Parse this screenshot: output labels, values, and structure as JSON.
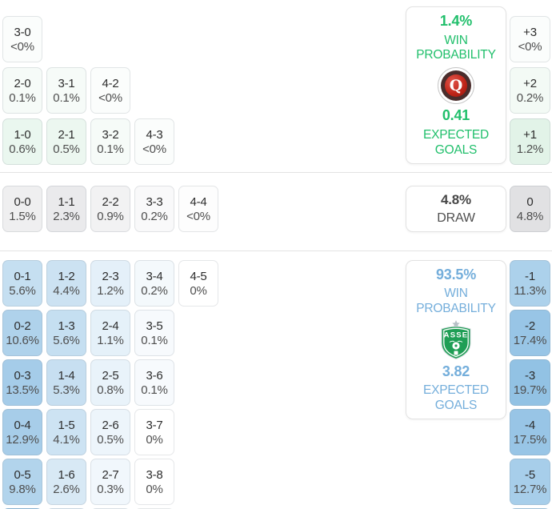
{
  "colors": {
    "green": "#20bf6b",
    "blue": "#74aedb",
    "divider": "#e3e3e3",
    "heat_green": "30,165,80",
    "heat_blue": "50,140,205",
    "heat_gray": "120,120,128",
    "team1_logo_red": "#c1271b",
    "team2_logo_green": "#1f9e55"
  },
  "top": {
    "rows": [
      [
        {
          "score": "3-0",
          "pct": "<0%"
        }
      ],
      [
        {
          "score": "2-0",
          "pct": "0.1%"
        },
        {
          "score": "3-1",
          "pct": "0.1%"
        },
        {
          "score": "4-2",
          "pct": "<0%"
        }
      ],
      [
        {
          "score": "1-0",
          "pct": "0.6%"
        },
        {
          "score": "2-1",
          "pct": "0.5%"
        },
        {
          "score": "3-2",
          "pct": "0.1%"
        },
        {
          "score": "4-3",
          "pct": "<0%"
        }
      ]
    ],
    "diffs": [
      {
        "label": "+3",
        "pct": "<0%"
      },
      {
        "label": "+2",
        "pct": "0.2%"
      },
      {
        "label": "+1",
        "pct": "1.2%"
      }
    ],
    "card": {
      "win_probability": "1.4%",
      "win_label": "WIN PROBABILITY",
      "expected_goals": "0.41",
      "goals_label": "EXPECTED GOALS",
      "logo_letter": "Q"
    }
  },
  "draw": {
    "cells": [
      {
        "score": "0-0",
        "pct": "1.5%"
      },
      {
        "score": "1-1",
        "pct": "2.3%"
      },
      {
        "score": "2-2",
        "pct": "0.9%"
      },
      {
        "score": "3-3",
        "pct": "0.2%"
      },
      {
        "score": "4-4",
        "pct": "<0%"
      }
    ],
    "card": {
      "probability": "4.8%",
      "label": "DRAW"
    },
    "diff": {
      "label": "0",
      "pct": "4.8%"
    }
  },
  "bottom": {
    "rows": [
      [
        {
          "score": "0-1",
          "pct": "5.6%"
        },
        {
          "score": "1-2",
          "pct": "4.4%"
        },
        {
          "score": "2-3",
          "pct": "1.2%"
        },
        {
          "score": "3-4",
          "pct": "0.2%"
        },
        {
          "score": "4-5",
          "pct": "0%"
        }
      ],
      [
        {
          "score": "0-2",
          "pct": "10.6%"
        },
        {
          "score": "1-3",
          "pct": "5.6%"
        },
        {
          "score": "2-4",
          "pct": "1.1%"
        },
        {
          "score": "3-5",
          "pct": "0.1%"
        }
      ],
      [
        {
          "score": "0-3",
          "pct": "13.5%"
        },
        {
          "score": "1-4",
          "pct": "5.3%"
        },
        {
          "score": "2-5",
          "pct": "0.8%"
        },
        {
          "score": "3-6",
          "pct": "0.1%"
        }
      ],
      [
        {
          "score": "0-4",
          "pct": "12.9%"
        },
        {
          "score": "1-5",
          "pct": "4.1%"
        },
        {
          "score": "2-6",
          "pct": "0.5%"
        },
        {
          "score": "3-7",
          "pct": "0%"
        }
      ],
      [
        {
          "score": "0-5",
          "pct": "9.8%"
        },
        {
          "score": "1-6",
          "pct": "2.6%"
        },
        {
          "score": "2-7",
          "pct": "0.3%"
        },
        {
          "score": "3-8",
          "pct": "0%"
        }
      ]
    ],
    "cutoff_colors": [
      "#8abde2",
      "#ddeaf5",
      "#eff6fb",
      "#ffffff"
    ],
    "diff_cutoff_color": "#a6cdea",
    "diffs": [
      {
        "label": "-1",
        "pct": "11.3%"
      },
      {
        "label": "-2",
        "pct": "17.4%"
      },
      {
        "label": "-3",
        "pct": "19.7%"
      },
      {
        "label": "-4",
        "pct": "17.5%"
      },
      {
        "label": "-5",
        "pct": "12.7%"
      }
    ],
    "card": {
      "win_probability": "93.5%",
      "win_label": "WIN PROBABILITY",
      "expected_goals": "3.82",
      "goals_label": "EXPECTED GOALS",
      "logo_text": "ASSE"
    }
  }
}
